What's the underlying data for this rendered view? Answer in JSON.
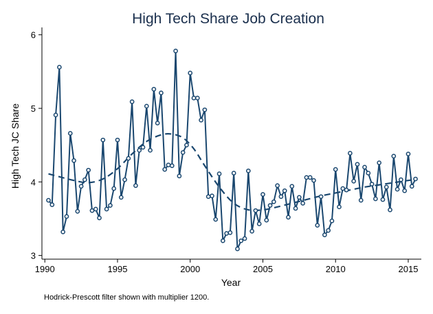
{
  "chart_data": {
    "type": "line",
    "title": "High Tech Share Job Creation",
    "xlabel": "Year",
    "ylabel": "High Tech JC Share",
    "note": "Hodrick-Prescott filter shown with multiplier 1200.",
    "xlim": [
      1989.8,
      2015.9
    ],
    "ylim": [
      2.95,
      6.1
    ],
    "x_ticks": [
      1990,
      1995,
      2000,
      2005,
      2010,
      2015
    ],
    "y_ticks": [
      3,
      4,
      5,
      6
    ],
    "grid": false,
    "legend": "none",
    "colors": {
      "series": "#1a476f",
      "background": "#ffffff"
    },
    "series": [
      {
        "style": "solid-with-markers",
        "x": [
          1990.25,
          1990.5,
          1990.75,
          1991,
          1991.25,
          1991.5,
          1991.75,
          1992,
          1992.25,
          1992.5,
          1992.75,
          1993,
          1993.25,
          1993.5,
          1993.75,
          1994,
          1994.25,
          1994.5,
          1994.75,
          1995,
          1995.25,
          1995.5,
          1995.75,
          1996,
          1996.25,
          1996.5,
          1996.75,
          1997,
          1997.25,
          1997.5,
          1997.75,
          1998,
          1998.25,
          1998.5,
          1998.75,
          1999,
          1999.25,
          1999.5,
          1999.75,
          2000,
          2000.25,
          2000.5,
          2000.75,
          2001,
          2001.25,
          2001.5,
          2001.75,
          2002,
          2002.25,
          2002.5,
          2002.75,
          2003,
          2003.25,
          2003.5,
          2003.75,
          2004,
          2004.25,
          2004.5,
          2004.75,
          2005,
          2005.25,
          2005.5,
          2005.75,
          2006,
          2006.25,
          2006.5,
          2006.75,
          2007,
          2007.25,
          2007.5,
          2007.75,
          2008,
          2008.25,
          2008.5,
          2008.75,
          2009,
          2009.25,
          2009.5,
          2009.75,
          2010,
          2010.25,
          2010.5,
          2010.75,
          2011,
          2011.25,
          2011.5,
          2011.75,
          2012,
          2012.25,
          2012.5,
          2012.75,
          2013,
          2013.25,
          2013.5,
          2013.75,
          2014,
          2014.25,
          2014.5,
          2014.75,
          2015,
          2015.25,
          2015.5
        ],
        "y": [
          3.75,
          3.69,
          4.91,
          5.56,
          3.32,
          3.53,
          4.66,
          4.29,
          3.6,
          3.94,
          4.03,
          4.16,
          3.61,
          3.63,
          3.51,
          4.57,
          3.63,
          3.68,
          3.91,
          4.57,
          3.79,
          4.03,
          4.32,
          5.09,
          3.95,
          4.43,
          4.47,
          5.03,
          4.43,
          5.26,
          4.8,
          5.21,
          4.17,
          4.23,
          4.22,
          5.78,
          4.08,
          4.4,
          4.5,
          5.48,
          5.14,
          5.14,
          4.84,
          4.98,
          3.8,
          3.81,
          3.49,
          4.11,
          3.2,
          3.3,
          3.31,
          4.12,
          3.09,
          3.2,
          3.23,
          4.15,
          3.33,
          3.61,
          3.43,
          3.83,
          3.48,
          3.68,
          3.73,
          3.95,
          3.8,
          3.88,
          3.52,
          3.94,
          3.64,
          3.79,
          3.71,
          4.06,
          4.06,
          4.02,
          3.41,
          3.8,
          3.28,
          3.34,
          3.47,
          4.17,
          3.66,
          3.91,
          3.89,
          4.39,
          4.01,
          4.24,
          3.75,
          4.2,
          4.12,
          3.97,
          3.77,
          4.26,
          3.76,
          3.93,
          3.62,
          4.35,
          3.9,
          4.03,
          3.88,
          4.38,
          3.94,
          4.04
        ]
      },
      {
        "style": "dashed-trend",
        "x": [
          1990.25,
          1991,
          1992,
          1993,
          1994,
          1995,
          1996,
          1997,
          1998,
          1998.75,
          1999.5,
          2000.25,
          2001,
          2002,
          2003,
          2004,
          2005,
          2006,
          2007,
          2008,
          2009,
          2010,
          2011,
          2012,
          2013,
          2014,
          2015,
          2015.5
        ],
        "y": [
          4.11,
          4.07,
          4.02,
          3.99,
          4.04,
          4.18,
          4.38,
          4.55,
          4.64,
          4.65,
          4.6,
          4.45,
          4.22,
          3.93,
          3.71,
          3.62,
          3.62,
          3.66,
          3.71,
          3.76,
          3.81,
          3.85,
          3.89,
          3.93,
          3.96,
          3.99,
          4.02,
          4.03
        ]
      }
    ]
  }
}
